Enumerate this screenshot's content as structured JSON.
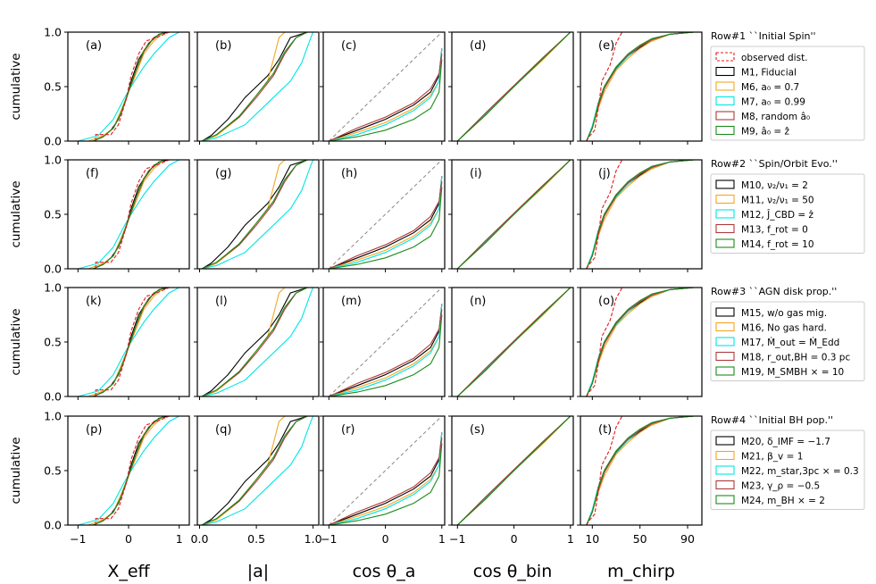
{
  "chart_data": {
    "type": "line",
    "ylabel": "cumulative",
    "ylim": [
      0,
      1
    ],
    "yticks": [
      "0.0",
      "0.5",
      "1.0"
    ],
    "columns": [
      {
        "key": "xeff",
        "xlabel": "X_eff",
        "xlim": [
          -1.2,
          1.2
        ],
        "ticks": [
          {
            "v": -1,
            "label": "−1"
          },
          {
            "v": 0,
            "label": "0"
          },
          {
            "v": 1,
            "label": "1"
          }
        ]
      },
      {
        "key": "a",
        "xlabel": "|a|",
        "xlim": [
          -0.02,
          1.05
        ],
        "ticks": [
          {
            "v": 0,
            "label": "0.0"
          },
          {
            "v": 0.5,
            "label": "0.5"
          },
          {
            "v": 1,
            "label": "1.0"
          }
        ]
      },
      {
        "key": "costa",
        "xlabel": "cos θ_a",
        "xlim": [
          -1.1,
          1.05
        ],
        "ticks": [
          {
            "v": -1,
            "label": "−1"
          },
          {
            "v": 0,
            "label": "0"
          },
          {
            "v": 1,
            "label": "1"
          }
        ]
      },
      {
        "key": "costbin",
        "xlabel": "cos θ_bin",
        "xlim": [
          -1.1,
          1.05
        ],
        "ticks": [
          {
            "v": -1,
            "label": "−1"
          },
          {
            "v": 0,
            "label": "0"
          },
          {
            "v": 1,
            "label": "1"
          }
        ]
      },
      {
        "key": "mchirp",
        "xlabel": "m_chirp",
        "xlim": [
          0,
          102
        ],
        "ticks": [
          {
            "v": 10,
            "label": "10"
          },
          {
            "v": 50,
            "label": "50"
          },
          {
            "v": 90,
            "label": "90"
          }
        ]
      }
    ],
    "rows": [
      {
        "title": "Row#1 ``Initial Spin''",
        "letters": [
          "(a)",
          "(b)",
          "(c)",
          "(d)",
          "(e)"
        ],
        "legend": [
          {
            "label": "observed dist.",
            "color": "#e41a1c",
            "dashed": true
          },
          {
            "label": "M1, Fiducial",
            "color": "#000000"
          },
          {
            "label": "M6, a₀ = 0.7",
            "color": "#f5a623"
          },
          {
            "label": "M7, a₀ = 0.99",
            "color": "#00e5e5"
          },
          {
            "label": "M8, random â₀",
            "color": "#b03a3a"
          },
          {
            "label": "M9, â₀ = ẑ",
            "color": "#1a8c1a"
          }
        ]
      },
      {
        "title": "Row#2 ``Spin/Orbit Evo.''",
        "letters": [
          "(f)",
          "(g)",
          "(h)",
          "(i)",
          "(j)"
        ],
        "legend": [
          {
            "label": "M10, ν₂/ν₁ = 2",
            "color": "#000000"
          },
          {
            "label": "M11, ν₂/ν₁ = 50",
            "color": "#f5a623"
          },
          {
            "label": "M12, Ĵ_CBD = ẑ",
            "color": "#00e5e5"
          },
          {
            "label": "M13, f_rot = 0",
            "color": "#b03a3a"
          },
          {
            "label": "M14, f_rot = 10",
            "color": "#1a8c1a"
          }
        ]
      },
      {
        "title": "Row#3 ``AGN disk prop.''",
        "letters": [
          "(k)",
          "(l)",
          "(m)",
          "(n)",
          "(o)"
        ],
        "legend": [
          {
            "label": "M15, w/o gas mig.",
            "color": "#000000"
          },
          {
            "label": "M16, No gas hard.",
            "color": "#f5a623"
          },
          {
            "label": "M17, Ṁ_out = Ṁ_Edd",
            "color": "#00e5e5"
          },
          {
            "label": "M18, r_out,BH = 0.3 pc",
            "color": "#b03a3a"
          },
          {
            "label": "M19, M_SMBH × = 10",
            "color": "#1a8c1a"
          }
        ]
      },
      {
        "title": "Row#4 ``Initial BH pop.''",
        "letters": [
          "(p)",
          "(q)",
          "(r)",
          "(s)",
          "(t)"
        ],
        "legend": [
          {
            "label": "M20, δ_IMF = −1.7",
            "color": "#000000"
          },
          {
            "label": "M21, β_v = 1",
            "color": "#f5a623"
          },
          {
            "label": "M22, m_star,3pc × = 0.3",
            "color": "#00e5e5"
          },
          {
            "label": "M23, γ_ρ = −0.5",
            "color": "#b03a3a"
          },
          {
            "label": "M24, m_BH × = 2",
            "color": "#1a8c1a"
          }
        ]
      }
    ],
    "observed": {
      "color": "#e41a1c",
      "xeff": [
        [
          -0.65,
          0
        ],
        [
          -0.65,
          0.06
        ],
        [
          -0.35,
          0.06
        ],
        [
          -0.2,
          0.15
        ],
        [
          -0.05,
          0.38
        ],
        [
          0.05,
          0.6
        ],
        [
          0.2,
          0.8
        ],
        [
          0.35,
          0.92
        ],
        [
          0.55,
          0.95
        ],
        [
          0.8,
          1.0
        ],
        [
          1.0,
          1.0
        ]
      ],
      "mchirp": [
        [
          5,
          0
        ],
        [
          8,
          0.05
        ],
        [
          12,
          0.1
        ],
        [
          15,
          0.3
        ],
        [
          18,
          0.55
        ],
        [
          25,
          0.7
        ],
        [
          30,
          0.9
        ],
        [
          35,
          1.0
        ],
        [
          95,
          1.0
        ]
      ]
    },
    "series": [
      {
        "name": "M1, Fiducial",
        "color": "#000000",
        "xeff": [
          [
            -0.7,
            0
          ],
          [
            -0.55,
            0.03
          ],
          [
            -0.35,
            0.1
          ],
          [
            -0.2,
            0.2
          ],
          [
            -0.05,
            0.38
          ],
          [
            0.05,
            0.55
          ],
          [
            0.2,
            0.75
          ],
          [
            0.4,
            0.9
          ],
          [
            0.6,
            0.98
          ],
          [
            0.8,
            1.0
          ]
        ],
        "a": [
          [
            0.02,
            0
          ],
          [
            0.1,
            0.05
          ],
          [
            0.25,
            0.2
          ],
          [
            0.4,
            0.4
          ],
          [
            0.5,
            0.5
          ],
          [
            0.6,
            0.6
          ],
          [
            0.7,
            0.75
          ],
          [
            0.8,
            0.95
          ],
          [
            0.95,
            1.0
          ]
        ],
        "costa": [
          [
            -1,
            0
          ],
          [
            -0.5,
            0.1
          ],
          [
            0,
            0.2
          ],
          [
            0.5,
            0.33
          ],
          [
            0.8,
            0.45
          ],
          [
            0.95,
            0.6
          ],
          [
            1,
            0.85
          ]
        ],
        "costbin": [
          [
            -1,
            0
          ],
          [
            -0.5,
            0.25
          ],
          [
            0,
            0.5
          ],
          [
            0.5,
            0.75
          ],
          [
            1,
            1
          ]
        ],
        "mchirp": [
          [
            5,
            0
          ],
          [
            10,
            0.12
          ],
          [
            15,
            0.35
          ],
          [
            20,
            0.5
          ],
          [
            30,
            0.68
          ],
          [
            40,
            0.78
          ],
          [
            50,
            0.86
          ],
          [
            60,
            0.92
          ],
          [
            75,
            0.98
          ],
          [
            95,
            1.0
          ]
        ]
      },
      {
        "name": "M6, a0 = 0.7",
        "color": "#f5a623",
        "xeff": [
          [
            -0.8,
            0
          ],
          [
            -0.5,
            0.05
          ],
          [
            -0.3,
            0.12
          ],
          [
            -0.15,
            0.28
          ],
          [
            0,
            0.45
          ],
          [
            0.15,
            0.62
          ],
          [
            0.3,
            0.8
          ],
          [
            0.5,
            0.92
          ],
          [
            0.7,
            1.0
          ]
        ],
        "a": [
          [
            0.02,
            0
          ],
          [
            0.15,
            0.05
          ],
          [
            0.35,
            0.22
          ],
          [
            0.5,
            0.42
          ],
          [
            0.6,
            0.55
          ],
          [
            0.65,
            0.75
          ],
          [
            0.7,
            0.95
          ],
          [
            0.75,
            1.0
          ]
        ],
        "costa": [
          [
            -1,
            0
          ],
          [
            -0.5,
            0.08
          ],
          [
            0,
            0.17
          ],
          [
            0.5,
            0.3
          ],
          [
            0.8,
            0.42
          ],
          [
            0.95,
            0.55
          ],
          [
            1,
            0.8
          ]
        ],
        "costbin": [
          [
            -1,
            0
          ],
          [
            -0.5,
            0.24
          ],
          [
            0,
            0.5
          ],
          [
            0.5,
            0.74
          ],
          [
            1,
            1
          ]
        ],
        "mchirp": [
          [
            5,
            0
          ],
          [
            10,
            0.12
          ],
          [
            15,
            0.3
          ],
          [
            20,
            0.45
          ],
          [
            30,
            0.65
          ],
          [
            40,
            0.76
          ],
          [
            50,
            0.85
          ],
          [
            60,
            0.92
          ],
          [
            75,
            0.98
          ],
          [
            95,
            1.0
          ]
        ]
      },
      {
        "name": "M7, a0 = 0.99",
        "color": "#00e5e5",
        "xeff": [
          [
            -1,
            0
          ],
          [
            -0.6,
            0.05
          ],
          [
            -0.3,
            0.2
          ],
          [
            -0.1,
            0.38
          ],
          [
            0.05,
            0.5
          ],
          [
            0.3,
            0.68
          ],
          [
            0.5,
            0.8
          ],
          [
            0.8,
            0.95
          ],
          [
            1,
            1
          ]
        ],
        "a": [
          [
            0.02,
            0
          ],
          [
            0.15,
            0.03
          ],
          [
            0.4,
            0.15
          ],
          [
            0.6,
            0.35
          ],
          [
            0.8,
            0.55
          ],
          [
            0.9,
            0.72
          ],
          [
            0.98,
            0.95
          ],
          [
            1,
            1
          ]
        ],
        "costa": [
          [
            -1,
            0
          ],
          [
            -0.5,
            0.06
          ],
          [
            0,
            0.15
          ],
          [
            0.5,
            0.28
          ],
          [
            0.8,
            0.4
          ],
          [
            0.95,
            0.55
          ],
          [
            1,
            0.85
          ]
        ],
        "costbin": [
          [
            -1,
            0
          ],
          [
            -0.5,
            0.25
          ],
          [
            0,
            0.5
          ],
          [
            0.5,
            0.75
          ],
          [
            1,
            1
          ]
        ],
        "mchirp": [
          [
            5,
            0
          ],
          [
            10,
            0.14
          ],
          [
            15,
            0.35
          ],
          [
            20,
            0.5
          ],
          [
            30,
            0.66
          ],
          [
            40,
            0.78
          ],
          [
            50,
            0.87
          ],
          [
            60,
            0.94
          ],
          [
            75,
            0.98
          ],
          [
            95,
            1.0
          ]
        ]
      },
      {
        "name": "M8, random a0",
        "color": "#b03a3a",
        "xeff": [
          [
            -0.7,
            0
          ],
          [
            -0.5,
            0.04
          ],
          [
            -0.3,
            0.12
          ],
          [
            -0.15,
            0.25
          ],
          [
            0,
            0.45
          ],
          [
            0.15,
            0.65
          ],
          [
            0.3,
            0.82
          ],
          [
            0.5,
            0.95
          ],
          [
            0.7,
            1
          ]
        ],
        "a": [
          [
            0.02,
            0
          ],
          [
            0.15,
            0.06
          ],
          [
            0.35,
            0.22
          ],
          [
            0.5,
            0.4
          ],
          [
            0.65,
            0.6
          ],
          [
            0.75,
            0.8
          ],
          [
            0.85,
            0.95
          ],
          [
            0.95,
            1
          ]
        ],
        "costa": [
          [
            -1,
            0
          ],
          [
            -0.5,
            0.12
          ],
          [
            0,
            0.22
          ],
          [
            0.5,
            0.35
          ],
          [
            0.8,
            0.48
          ],
          [
            0.95,
            0.62
          ],
          [
            1,
            0.8
          ]
        ],
        "costbin": [
          [
            -1,
            0
          ],
          [
            -0.5,
            0.26
          ],
          [
            0,
            0.51
          ],
          [
            0.5,
            0.76
          ],
          [
            1,
            1
          ]
        ],
        "mchirp": [
          [
            5,
            0
          ],
          [
            10,
            0.12
          ],
          [
            15,
            0.32
          ],
          [
            20,
            0.48
          ],
          [
            30,
            0.67
          ],
          [
            40,
            0.79
          ],
          [
            50,
            0.87
          ],
          [
            60,
            0.93
          ],
          [
            75,
            0.98
          ],
          [
            95,
            1.0
          ]
        ]
      },
      {
        "name": "M9, a0 = z",
        "color": "#1a8c1a",
        "xeff": [
          [
            -0.7,
            0
          ],
          [
            -0.5,
            0.04
          ],
          [
            -0.3,
            0.12
          ],
          [
            -0.15,
            0.26
          ],
          [
            0,
            0.46
          ],
          [
            0.15,
            0.66
          ],
          [
            0.3,
            0.83
          ],
          [
            0.5,
            0.95
          ],
          [
            0.7,
            1
          ]
        ],
        "a": [
          [
            0.02,
            0
          ],
          [
            0.15,
            0.06
          ],
          [
            0.35,
            0.23
          ],
          [
            0.5,
            0.42
          ],
          [
            0.65,
            0.62
          ],
          [
            0.75,
            0.82
          ],
          [
            0.85,
            0.95
          ],
          [
            0.95,
            1
          ]
        ],
        "costa": [
          [
            -1,
            0
          ],
          [
            -0.5,
            0.04
          ],
          [
            0,
            0.1
          ],
          [
            0.5,
            0.2
          ],
          [
            0.8,
            0.3
          ],
          [
            0.95,
            0.45
          ],
          [
            1,
            0.75
          ]
        ],
        "costbin": [
          [
            -1,
            0
          ],
          [
            -0.5,
            0.24
          ],
          [
            0,
            0.5
          ],
          [
            0.5,
            0.75
          ],
          [
            1,
            1
          ]
        ],
        "mchirp": [
          [
            5,
            0
          ],
          [
            10,
            0.12
          ],
          [
            15,
            0.34
          ],
          [
            20,
            0.5
          ],
          [
            30,
            0.68
          ],
          [
            40,
            0.8
          ],
          [
            50,
            0.88
          ],
          [
            60,
            0.94
          ],
          [
            75,
            0.98
          ],
          [
            95,
            1.0
          ]
        ]
      }
    ]
  }
}
